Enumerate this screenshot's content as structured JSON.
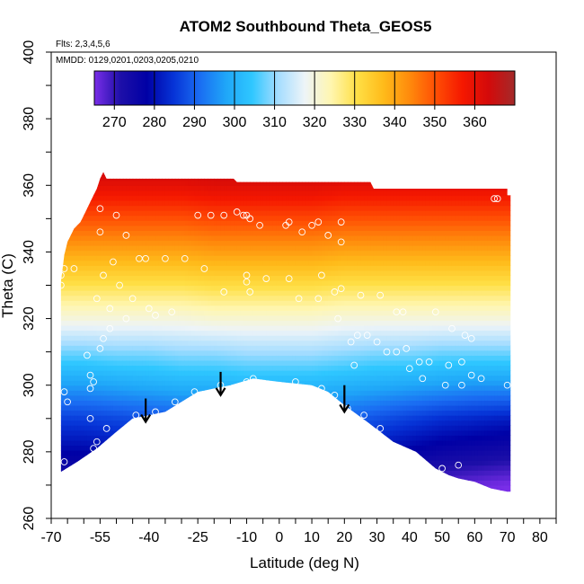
{
  "chart_data": {
    "type": "heatmap",
    "title": "ATOM2 Southbound Theta_GEOS5",
    "annotations": [
      "Flts: 2,3,4,5,6",
      "MMDD: 0129,0201,0203,0205,0210"
    ],
    "xlabel": "Latitude (deg N)",
    "ylabel": "Theta (C)",
    "xlim": [
      -70,
      85
    ],
    "ylim": [
      260,
      400
    ],
    "x_ticks": [
      -70,
      -55,
      -40,
      -25,
      -10,
      0,
      10,
      20,
      30,
      40,
      50,
      60,
      70,
      80
    ],
    "y_ticks": [
      260,
      280,
      300,
      320,
      340,
      360,
      380,
      400
    ],
    "colorbar": {
      "min": 265,
      "max": 370,
      "ticks": [
        270,
        280,
        290,
        300,
        310,
        320,
        330,
        340,
        350,
        360
      ],
      "colors": [
        "#7a2ee8",
        "#1d0fa8",
        "#0000a5",
        "#0633d6",
        "#1a6cf2",
        "#1fa6f8",
        "#2fc7ff",
        "#a5ddff",
        "#edf4f8",
        "#fff6b0",
        "#ffdf45",
        "#ffbb1a",
        "#ff8a0c",
        "#ff4e04",
        "#f51800",
        "#d40a0a",
        "#a32a2a"
      ]
    },
    "curtain": {
      "upper_edge": [
        [
          -67,
          331
        ],
        [
          -66,
          339
        ],
        [
          -65,
          343
        ],
        [
          -64,
          345
        ],
        [
          -63,
          347
        ],
        [
          -61,
          349
        ],
        [
          -60,
          351
        ],
        [
          -59,
          353
        ],
        [
          -58,
          355
        ],
        [
          -57,
          357
        ],
        [
          -56,
          359
        ],
        [
          -55,
          362
        ],
        [
          -54,
          364
        ],
        [
          -53,
          362
        ],
        [
          -14,
          362
        ],
        [
          -13,
          361
        ],
        [
          28,
          361
        ],
        [
          29,
          359
        ],
        [
          70,
          359
        ],
        [
          70,
          357
        ],
        [
          71,
          357
        ],
        [
          71,
          340
        ]
      ],
      "surface": [
        [
          -67,
          274
        ],
        [
          -62,
          277
        ],
        [
          -56,
          281
        ],
        [
          -50,
          286
        ],
        [
          -45,
          290
        ],
        [
          -40,
          291
        ],
        [
          -35,
          292
        ],
        [
          -30,
          295
        ],
        [
          -25,
          298
        ],
        [
          -15,
          300
        ],
        [
          -8,
          302
        ],
        [
          0,
          301
        ],
        [
          10,
          300
        ],
        [
          15,
          298
        ],
        [
          20,
          294
        ],
        [
          27,
          289
        ],
        [
          35,
          283
        ],
        [
          42,
          280
        ],
        [
          48,
          275
        ],
        [
          52,
          273
        ],
        [
          55,
          272
        ],
        [
          60,
          271
        ],
        [
          65,
          269
        ],
        [
          70,
          268
        ],
        [
          71,
          268
        ]
      ],
      "theta_grid": {
        "latitudes": [
          -68,
          -60,
          -50,
          -40,
          -30,
          -20,
          -10,
          0,
          10,
          20,
          30,
          40,
          50,
          60,
          70
        ],
        "theta_levels": [
          270,
          290,
          300,
          310,
          320,
          330,
          340,
          350,
          360
        ],
        "values": [
          [
            271,
            271,
            272,
            272,
            273,
            273,
            274,
            275,
            275,
            273,
            271,
            269,
            267,
            266,
            265
          ],
          [
            286,
            286,
            287,
            288,
            289,
            290,
            291,
            291,
            291,
            290,
            288,
            286,
            284,
            283,
            282
          ],
          [
            297,
            297,
            298,
            299,
            300,
            300,
            301,
            301,
            301,
            300,
            299,
            298,
            297,
            296,
            296
          ],
          [
            308,
            308,
            309,
            309,
            310,
            310,
            311,
            311,
            311,
            310,
            309,
            309,
            308,
            308,
            308
          ],
          [
            320,
            320,
            320,
            320,
            320,
            321,
            321,
            321,
            321,
            320,
            320,
            320,
            320,
            320,
            320
          ],
          [
            330,
            330,
            330,
            330,
            330,
            331,
            331,
            331,
            331,
            330,
            330,
            330,
            330,
            330,
            330
          ],
          [
            340,
            340,
            340,
            340,
            340,
            341,
            341,
            341,
            341,
            340,
            340,
            340,
            340,
            340,
            340
          ],
          [
            350,
            350,
            350,
            350,
            350,
            351,
            351,
            351,
            351,
            350,
            350,
            350,
            350,
            350,
            350
          ],
          [
            360,
            360,
            360,
            360,
            360,
            361,
            361,
            361,
            361,
            360,
            360,
            360,
            360,
            360,
            360
          ]
        ]
      }
    },
    "arrows": [
      {
        "lat": -41,
        "theta_top": 296,
        "theta_bottom": 289
      },
      {
        "lat": -18,
        "theta_top": 304,
        "theta_bottom": 297
      },
      {
        "lat": 20,
        "theta_top": 300,
        "theta_bottom": 292
      }
    ],
    "points": [
      {
        "lat": -67,
        "theta": 333
      },
      {
        "lat": -67,
        "theta": 330
      },
      {
        "lat": -66,
        "theta": 335
      },
      {
        "lat": -66,
        "theta": 298
      },
      {
        "lat": -65,
        "theta": 295
      },
      {
        "lat": -66,
        "theta": 277
      },
      {
        "lat": -55,
        "theta": 353
      },
      {
        "lat": -50,
        "theta": 351
      },
      {
        "lat": -55,
        "theta": 346
      },
      {
        "lat": -47,
        "theta": 345
      },
      {
        "lat": -51,
        "theta": 337
      },
      {
        "lat": -43,
        "theta": 338
      },
      {
        "lat": -41,
        "theta": 338
      },
      {
        "lat": -35,
        "theta": 338
      },
      {
        "lat": -29,
        "theta": 338
      },
      {
        "lat": -23,
        "theta": 335
      },
      {
        "lat": -54,
        "theta": 333
      },
      {
        "lat": -49,
        "theta": 330
      },
      {
        "lat": -56,
        "theta": 326
      },
      {
        "lat": -52,
        "theta": 323
      },
      {
        "lat": -45,
        "theta": 326
      },
      {
        "lat": -40,
        "theta": 323
      },
      {
        "lat": -38,
        "theta": 321
      },
      {
        "lat": -33,
        "theta": 322
      },
      {
        "lat": -47,
        "theta": 320
      },
      {
        "lat": -52,
        "theta": 317
      },
      {
        "lat": -54,
        "theta": 314
      },
      {
        "lat": -55,
        "theta": 311
      },
      {
        "lat": -59,
        "theta": 309
      },
      {
        "lat": -58,
        "theta": 303
      },
      {
        "lat": -57,
        "theta": 301
      },
      {
        "lat": -58,
        "theta": 299
      },
      {
        "lat": -58,
        "theta": 290
      },
      {
        "lat": -53,
        "theta": 287
      },
      {
        "lat": -56,
        "theta": 283
      },
      {
        "lat": -57,
        "theta": 281
      },
      {
        "lat": -44,
        "theta": 291
      },
      {
        "lat": -38,
        "theta": 292
      },
      {
        "lat": -32,
        "theta": 295
      },
      {
        "lat": -26,
        "theta": 298
      },
      {
        "lat": -18,
        "theta": 300
      },
      {
        "lat": -10,
        "theta": 301
      },
      {
        "lat": -8,
        "theta": 302
      },
      {
        "lat": 0,
        "theta": 300
      },
      {
        "lat": 5,
        "theta": 301
      },
      {
        "lat": 13,
        "theta": 299
      },
      {
        "lat": 17,
        "theta": 297
      },
      {
        "lat": 21,
        "theta": 293
      },
      {
        "lat": 26,
        "theta": 291
      },
      {
        "lat": 31,
        "theta": 287
      },
      {
        "lat": 37,
        "theta": 281
      },
      {
        "lat": 42,
        "theta": 278
      },
      {
        "lat": 50,
        "theta": 275
      },
      {
        "lat": 55,
        "theta": 276
      },
      {
        "lat": 70,
        "theta": 300
      },
      {
        "lat": -25,
        "theta": 351
      },
      {
        "lat": -21,
        "theta": 351
      },
      {
        "lat": -17,
        "theta": 351
      },
      {
        "lat": -13,
        "theta": 352
      },
      {
        "lat": -11,
        "theta": 351
      },
      {
        "lat": -10,
        "theta": 351
      },
      {
        "lat": -9,
        "theta": 350
      },
      {
        "lat": -6,
        "theta": 348
      },
      {
        "lat": 2,
        "theta": 348
      },
      {
        "lat": 3,
        "theta": 349
      },
      {
        "lat": 7,
        "theta": 346
      },
      {
        "lat": 10,
        "theta": 348
      },
      {
        "lat": 12,
        "theta": 349
      },
      {
        "lat": 15,
        "theta": 345
      },
      {
        "lat": 19,
        "theta": 343
      },
      {
        "lat": 19,
        "theta": 349
      },
      {
        "lat": -10,
        "theta": 333
      },
      {
        "lat": -10,
        "theta": 331
      },
      {
        "lat": -4,
        "theta": 332
      },
      {
        "lat": 3,
        "theta": 332
      },
      {
        "lat": 13,
        "theta": 333
      },
      {
        "lat": -9,
        "theta": 328
      },
      {
        "lat": -17,
        "theta": 328
      },
      {
        "lat": 6,
        "theta": 326
      },
      {
        "lat": 12,
        "theta": 326
      },
      {
        "lat": 17,
        "theta": 328
      },
      {
        "lat": 19,
        "theta": 329
      },
      {
        "lat": 25,
        "theta": 327
      },
      {
        "lat": 31,
        "theta": 327
      },
      {
        "lat": 36,
        "theta": 322
      },
      {
        "lat": 18,
        "theta": 320
      },
      {
        "lat": 22,
        "theta": 313
      },
      {
        "lat": 24,
        "theta": 315
      },
      {
        "lat": 27,
        "theta": 315
      },
      {
        "lat": 30,
        "theta": 313
      },
      {
        "lat": 33,
        "theta": 310
      },
      {
        "lat": 36,
        "theta": 310
      },
      {
        "lat": 39,
        "theta": 311
      },
      {
        "lat": 43,
        "theta": 307
      },
      {
        "lat": 46,
        "theta": 307
      },
      {
        "lat": 40,
        "theta": 305
      },
      {
        "lat": 52,
        "theta": 306
      },
      {
        "lat": 56,
        "theta": 307
      },
      {
        "lat": 59,
        "theta": 303
      },
      {
        "lat": 44,
        "theta": 302
      },
      {
        "lat": 51,
        "theta": 300
      },
      {
        "lat": 56,
        "theta": 300
      },
      {
        "lat": 62,
        "theta": 302
      },
      {
        "lat": 23,
        "theta": 306
      },
      {
        "lat": 57,
        "theta": 315
      },
      {
        "lat": 59,
        "theta": 314
      },
      {
        "lat": 53,
        "theta": 317
      },
      {
        "lat": 66,
        "theta": 356
      },
      {
        "lat": 67,
        "theta": 356
      },
      {
        "lat": 38,
        "theta": 322
      },
      {
        "lat": 48,
        "theta": 322
      },
      {
        "lat": -63,
        "theta": 335
      }
    ]
  }
}
